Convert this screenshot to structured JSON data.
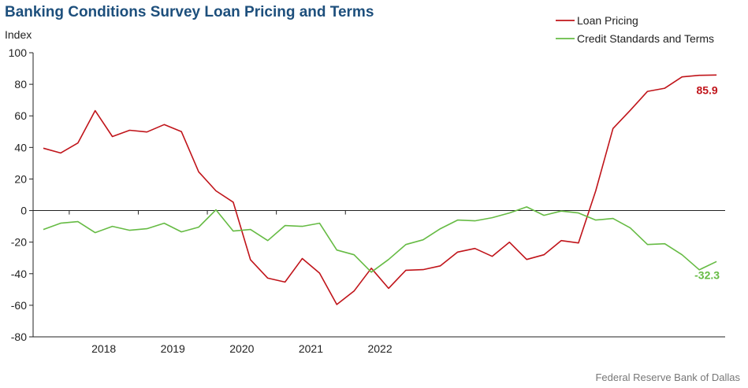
{
  "title": "Banking Conditions Survey Loan Pricing and Terms",
  "ylabel": "Index",
  "source": "Federal Reserve Bank of Dallas",
  "colors": {
    "loan": "#c0141a",
    "credit": "#66bb44",
    "axis": "#222222"
  },
  "chart_data": {
    "type": "line",
    "ylim": [
      -80,
      100
    ],
    "yticks": [
      100,
      80,
      60,
      40,
      20,
      0,
      -20,
      -40,
      -60,
      -80
    ],
    "x_start_year": 2017.5,
    "x_end_year": 2022.5,
    "year_labels": [
      "2018",
      "2019",
      "2020",
      "2021",
      "2022"
    ],
    "legend_position": "top-right",
    "series": [
      {
        "name": "Loan Pricing",
        "end_label": "85.9",
        "values": [
          39.5,
          36.5,
          42.8,
          63.3,
          46.9,
          50.9,
          49.8,
          54.5,
          50.0,
          24.5,
          12.5,
          5.3,
          -31.2,
          -42.8,
          -45.3,
          -30.4,
          -39.6,
          -59.5,
          -51.0,
          -36.5,
          -49.3,
          -37.8,
          -37.4,
          -35.0,
          -26.3,
          -24.0,
          -29.0,
          -20.0,
          -31.0,
          -28.0,
          -19.0,
          -20.5,
          12.5,
          52.0,
          63.5,
          75.5,
          77.5,
          84.7,
          85.7,
          85.9
        ]
      },
      {
        "name": "Credit Standards and Terms",
        "end_label": "-32.3",
        "values": [
          -12.0,
          -8.0,
          -7.0,
          -14.0,
          -10.0,
          -12.5,
          -11.5,
          -8.0,
          -13.5,
          -10.5,
          0.5,
          -13.0,
          -12.0,
          -19.0,
          -9.5,
          -10.0,
          -8.0,
          -25.0,
          -28.0,
          -39.0,
          -31.0,
          -21.5,
          -18.5,
          -11.5,
          -6.0,
          -6.5,
          -4.5,
          -1.5,
          2.3,
          -3.0,
          -0.3,
          -1.5,
          -6.0,
          -5.0,
          -11.0,
          -21.5,
          -21.0,
          -28.0,
          -37.5,
          -32.3
        ]
      }
    ]
  }
}
